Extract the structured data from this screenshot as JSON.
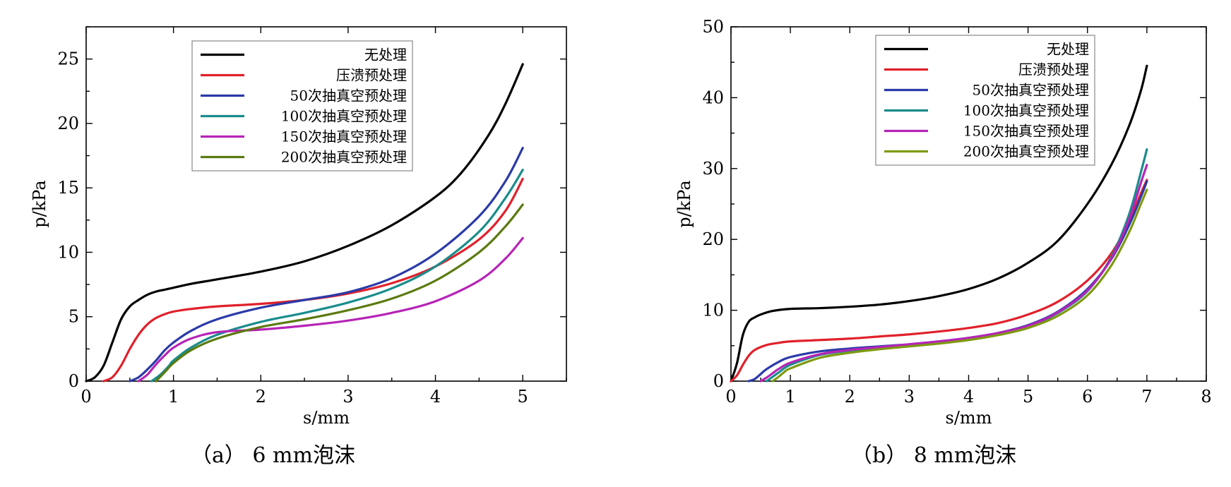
{
  "chart_data": [
    {
      "type": "line",
      "caption": "（a） 6 mm泡沫",
      "xlabel": "s/mm",
      "ylabel": "p/kPa",
      "xlim": [
        0,
        5.5
      ],
      "ylim": [
        0,
        27.5
      ],
      "xticks": [
        0,
        1,
        2,
        3,
        4,
        5
      ],
      "yticks": [
        0,
        5,
        10,
        15,
        20,
        25
      ],
      "legend_position": "top-center",
      "series": [
        {
          "name": "无处理",
          "color": "#000000",
          "x": [
            0,
            0.1,
            0.2,
            0.3,
            0.4,
            0.5,
            0.6,
            0.7,
            0.8,
            0.9,
            1.0,
            1.2,
            1.5,
            2.0,
            2.5,
            3.0,
            3.5,
            4.0,
            4.3,
            4.6,
            4.8,
            5.0
          ],
          "y": [
            0,
            0.3,
            1.2,
            3.0,
            4.8,
            5.8,
            6.3,
            6.7,
            6.95,
            7.1,
            7.25,
            7.55,
            7.9,
            8.5,
            9.3,
            10.5,
            12.1,
            14.3,
            16.2,
            19.0,
            21.5,
            24.6
          ]
        },
        {
          "name": "压溃预处理",
          "color": "#e0212b",
          "x": [
            0.2,
            0.3,
            0.4,
            0.5,
            0.6,
            0.7,
            0.8,
            0.9,
            1.0,
            1.2,
            1.5,
            2.0,
            2.5,
            3.0,
            3.5,
            4.0,
            4.5,
            4.8,
            5.0
          ],
          "y": [
            0,
            0.3,
            1.2,
            2.5,
            3.6,
            4.4,
            4.9,
            5.2,
            5.4,
            5.6,
            5.8,
            6.0,
            6.3,
            6.8,
            7.6,
            8.9,
            11.0,
            13.2,
            15.7
          ]
        },
        {
          "name": "50次抽真空预处理",
          "color": "#2b3aa8",
          "x": [
            0.5,
            0.6,
            0.7,
            0.8,
            0.9,
            1.0,
            1.2,
            1.5,
            2.0,
            2.5,
            3.0,
            3.5,
            4.0,
            4.5,
            4.8,
            5.0
          ],
          "y": [
            0,
            0.3,
            0.9,
            1.6,
            2.4,
            3.0,
            3.9,
            4.8,
            5.7,
            6.3,
            6.9,
            8.0,
            9.9,
            12.8,
            15.5,
            18.1
          ]
        },
        {
          "name": "100次抽真空预处理",
          "color": "#1a8c8c",
          "x": [
            0.75,
            0.85,
            0.95,
            1.0,
            1.2,
            1.5,
            2.0,
            2.5,
            3.0,
            3.5,
            4.0,
            4.5,
            4.8,
            5.0
          ],
          "y": [
            0,
            0.5,
            1.2,
            1.6,
            2.6,
            3.6,
            4.6,
            5.3,
            6.1,
            7.2,
            8.9,
            11.6,
            14.2,
            16.4
          ]
        },
        {
          "name": "150次抽真空预处理",
          "color": "#b624b6",
          "x": [
            0.6,
            0.7,
            0.8,
            0.9,
            1.0,
            1.2,
            1.5,
            2.0,
            2.5,
            3.0,
            3.5,
            4.0,
            4.5,
            4.8,
            5.0
          ],
          "y": [
            0,
            0.5,
            1.3,
            2.0,
            2.6,
            3.3,
            3.8,
            4.0,
            4.3,
            4.7,
            5.3,
            6.2,
            7.8,
            9.5,
            11.1
          ]
        },
        {
          "name": "200次抽真空预处理",
          "color": "#5b7a10",
          "x": [
            0.8,
            0.9,
            1.0,
            1.2,
            1.5,
            2.0,
            2.5,
            3.0,
            3.5,
            4.0,
            4.5,
            4.8,
            5.0
          ],
          "y": [
            0,
            0.7,
            1.4,
            2.4,
            3.3,
            4.2,
            4.8,
            5.5,
            6.4,
            7.8,
            10.0,
            12.0,
            13.7
          ]
        }
      ]
    },
    {
      "type": "line",
      "caption": "（b） 8 mm泡沫",
      "xlabel": "s/mm",
      "ylabel": "p/kPa",
      "xlim": [
        0,
        8
      ],
      "ylim": [
        0,
        50
      ],
      "xticks": [
        0,
        1,
        2,
        3,
        4,
        5,
        6,
        7,
        8
      ],
      "yticks": [
        0,
        10,
        20,
        30,
        40,
        50
      ],
      "legend_position": "top-left",
      "series": [
        {
          "name": "无处理",
          "color": "#000000",
          "x": [
            0,
            0.1,
            0.2,
            0.3,
            0.4,
            0.5,
            0.7,
            1.0,
            1.5,
            2.0,
            2.5,
            3.0,
            3.5,
            4.0,
            4.5,
            5.0,
            5.5,
            6.0,
            6.4,
            6.7,
            6.9,
            7.0
          ],
          "y": [
            0,
            2.5,
            6.5,
            8.4,
            9.0,
            9.4,
            9.9,
            10.2,
            10.3,
            10.5,
            10.8,
            11.3,
            12.0,
            13.0,
            14.5,
            16.7,
            19.8,
            25.0,
            30.5,
            36.0,
            41.0,
            44.5
          ]
        },
        {
          "name": "压溃预处理",
          "color": "#e0212b",
          "x": [
            0,
            0.1,
            0.2,
            0.3,
            0.4,
            0.6,
            0.8,
            1.0,
            1.5,
            2.0,
            2.5,
            3.0,
            3.5,
            4.0,
            4.5,
            5.0,
            5.5,
            6.0,
            6.4,
            6.7,
            6.9,
            7.0
          ],
          "y": [
            0,
            0.8,
            2.3,
            3.6,
            4.4,
            5.1,
            5.4,
            5.6,
            5.8,
            6.0,
            6.3,
            6.6,
            7.0,
            7.5,
            8.2,
            9.4,
            11.2,
            14.2,
            18.0,
            22.5,
            26.5,
            28.4
          ]
        },
        {
          "name": "50次抽真空预处理",
          "color": "#2b3aa8",
          "x": [
            0.3,
            0.4,
            0.5,
            0.6,
            0.8,
            1.0,
            1.5,
            2.0,
            2.5,
            3.0,
            3.5,
            4.0,
            4.5,
            5.0,
            5.5,
            6.0,
            6.4,
            6.7,
            6.9,
            7.0
          ],
          "y": [
            0,
            0.3,
            1.0,
            1.7,
            2.7,
            3.4,
            4.2,
            4.6,
            4.9,
            5.2,
            5.6,
            6.1,
            6.8,
            7.9,
            9.8,
            13.0,
            17.2,
            22.0,
            26.0,
            28.2
          ]
        },
        {
          "name": "100次抽真空预处理",
          "color": "#1a8c8c",
          "x": [
            0.6,
            0.7,
            0.8,
            1.0,
            1.5,
            2.0,
            2.5,
            3.0,
            3.5,
            4.0,
            4.5,
            5.0,
            5.5,
            6.0,
            6.4,
            6.7,
            6.9,
            7.0
          ],
          "y": [
            0,
            0.6,
            1.2,
            2.3,
            3.7,
            4.3,
            4.7,
            5.1,
            5.5,
            6.0,
            6.7,
            7.7,
            9.6,
            12.7,
            17.5,
            23.5,
            29.5,
            32.7
          ]
        },
        {
          "name": "150次抽真空预处理",
          "color": "#b624b6",
          "x": [
            0.5,
            0.6,
            0.7,
            0.8,
            1.0,
            1.5,
            2.0,
            2.5,
            3.0,
            3.5,
            4.0,
            4.5,
            5.0,
            5.5,
            6.0,
            6.4,
            6.7,
            6.9,
            7.0
          ],
          "y": [
            0,
            0.5,
            1.1,
            1.7,
            2.6,
            3.8,
            4.4,
            4.8,
            5.2,
            5.6,
            6.1,
            6.8,
            7.8,
            9.7,
            12.8,
            17.3,
            22.8,
            28.0,
            30.5
          ]
        },
        {
          "name": "200次抽真空预处理",
          "color": "#7e9a10",
          "x": [
            0.7,
            0.8,
            0.9,
            1.0,
            1.5,
            2.0,
            2.5,
            3.0,
            3.5,
            4.0,
            4.5,
            5.0,
            5.5,
            6.0,
            6.4,
            6.7,
            6.9,
            7.0
          ],
          "y": [
            0,
            0.6,
            1.3,
            1.8,
            3.3,
            4.0,
            4.5,
            4.9,
            5.3,
            5.8,
            6.5,
            7.5,
            9.2,
            12.1,
            16.3,
            21.0,
            25.0,
            27.0
          ]
        }
      ]
    }
  ]
}
